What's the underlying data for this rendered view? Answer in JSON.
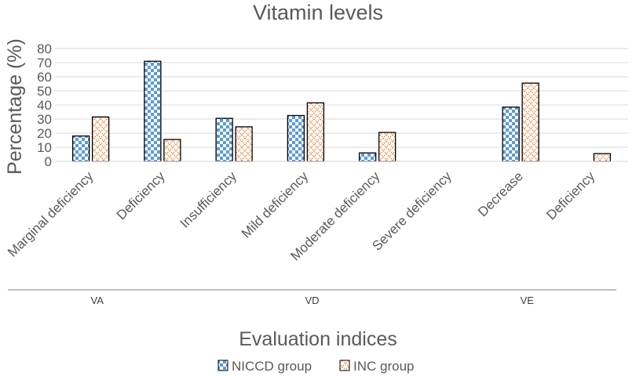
{
  "chart_data": {
    "type": "bar",
    "title": "Vitamin levels",
    "xlabel": "Evaluation indices",
    "ylabel": "Percentage (%)",
    "ylim": [
      0,
      80
    ],
    "yticks": [
      0,
      10,
      20,
      30,
      40,
      50,
      60,
      70,
      80
    ],
    "grid": true,
    "legend_position": "bottom",
    "categories": [
      "Marginal deficiency",
      "Deficiency",
      "Insufficiency",
      "Mild deficiency",
      "Moderate deficiency",
      "Severe deficiency",
      "Decrease",
      "Deficiency"
    ],
    "groups": [
      {
        "label": "VA",
        "categories": [
          0,
          1
        ]
      },
      {
        "label": "VD",
        "categories": [
          2,
          3,
          4,
          5
        ]
      },
      {
        "label": "VE",
        "categories": [
          6,
          7
        ]
      }
    ],
    "series": [
      {
        "name": "NICCD group",
        "pattern": "checker",
        "color": "#5b9bd5",
        "values": [
          18,
          71,
          30.5,
          32.5,
          6,
          0,
          38.5,
          0
        ]
      },
      {
        "name": "INC group",
        "pattern": "crosshatch",
        "color": "#ed7d31",
        "values": [
          31.5,
          15.5,
          24.5,
          41.5,
          20.5,
          0,
          55.5,
          5.5
        ]
      }
    ]
  }
}
